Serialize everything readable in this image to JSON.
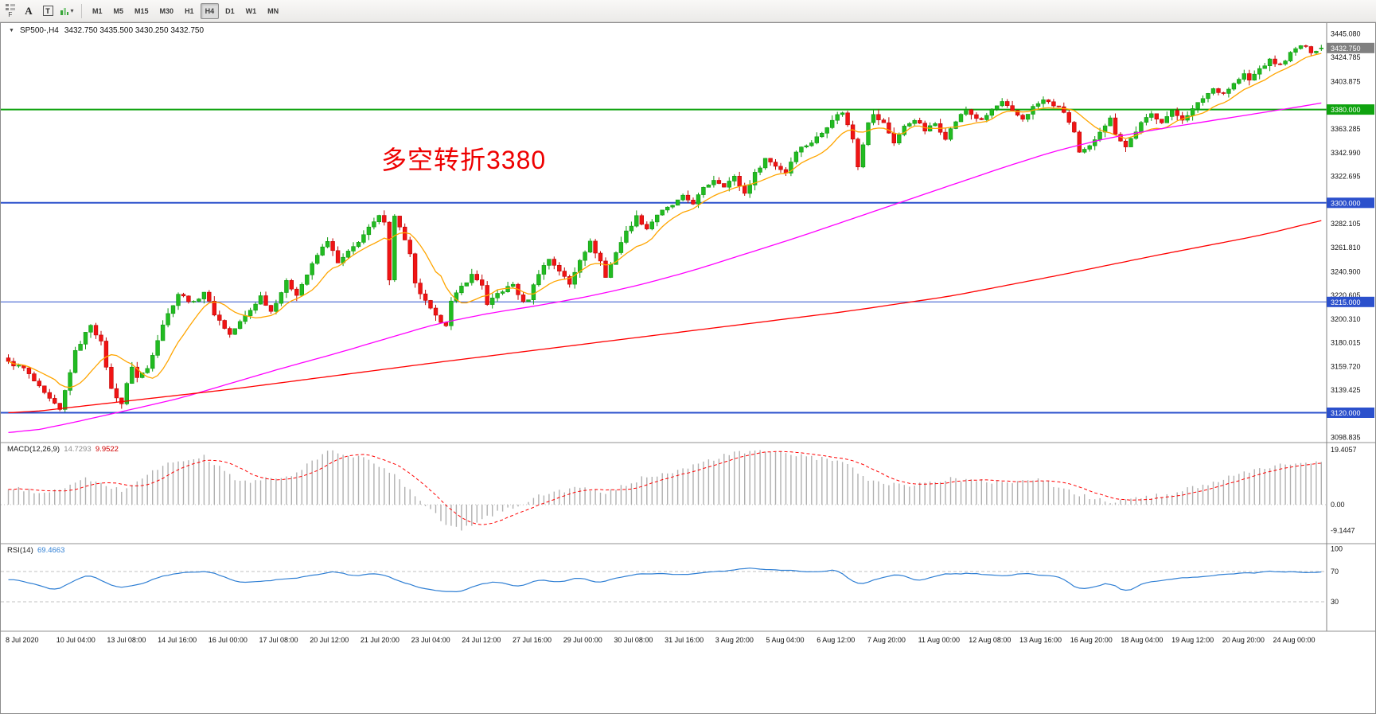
{
  "toolbar": {
    "f_label": "F",
    "icons": {
      "chart_list": "grid",
      "indicators": "bars",
      "dropdown": "▾",
      "symbol_marker": "▼"
    },
    "tools": [
      {
        "name": "text-label",
        "glyph": "A"
      },
      {
        "name": "text-box",
        "glyph": "T"
      }
    ],
    "timeframes": [
      {
        "label": "M1",
        "active": false
      },
      {
        "label": "M5",
        "active": false
      },
      {
        "label": "M15",
        "active": false
      },
      {
        "label": "M30",
        "active": false
      },
      {
        "label": "H1",
        "active": false
      },
      {
        "label": "H4",
        "active": true
      },
      {
        "label": "D1",
        "active": false
      },
      {
        "label": "W1",
        "active": false
      },
      {
        "label": "MN",
        "active": false
      }
    ]
  },
  "chart": {
    "title_marker": "▼",
    "symbol_period": "SP500-,H4",
    "ohlc": "3432.750 3435.500 3430.250 3432.750",
    "annotation": {
      "text": "多空转折3380",
      "color": "#ee0000"
    }
  },
  "chart_data": {
    "type": "candlestick",
    "symbol": "SP500-",
    "timeframe": "H4",
    "title": "SP500-,H4",
    "bars": 256,
    "last_ohlc": {
      "open": 3432.75,
      "high": 3435.5,
      "low": 3430.25,
      "close": 3432.75
    },
    "noise": 3.2,
    "colors": {
      "up": "#22bb22",
      "up_stroke": "#0f9a0f",
      "down": "#f01414",
      "down_stroke": "#c00404"
    },
    "price_axis": {
      "ticks": [
        3445.08,
        3424.785,
        3403.875,
        3363.285,
        3342.99,
        3322.695,
        3282.105,
        3261.81,
        3240.9,
        3220.605,
        3200.31,
        3180.015,
        3159.72,
        3139.425,
        3098.835
      ]
    },
    "current_price": {
      "value": 3432.75,
      "label": "3432.750",
      "bg": "#808080"
    },
    "hlines": [
      {
        "price": 3380.0,
        "label": "3380.000",
        "color": "#0fa30f",
        "width": 2
      },
      {
        "price": 3300.0,
        "label": "3300.000",
        "color": "#2b50cc",
        "width": 2
      },
      {
        "price": 3215.0,
        "label": "3215.000",
        "color": "#2b50cc",
        "width": 1
      },
      {
        "price": 3120.0,
        "label": "3120.000",
        "color": "#2b50cc",
        "width": 2
      }
    ],
    "close_keyframes": [
      [
        0,
        3163
      ],
      [
        3,
        3158
      ],
      [
        7,
        3136
      ],
      [
        10,
        3122
      ],
      [
        13,
        3172
      ],
      [
        16,
        3196
      ],
      [
        18,
        3180
      ],
      [
        20,
        3140
      ],
      [
        22,
        3128
      ],
      [
        24,
        3160
      ],
      [
        25,
        3150
      ],
      [
        27,
        3158
      ],
      [
        30,
        3196
      ],
      [
        33,
        3222
      ],
      [
        36,
        3214
      ],
      [
        38,
        3224
      ],
      [
        40,
        3205
      ],
      [
        43,
        3187
      ],
      [
        47,
        3208
      ],
      [
        49,
        3220
      ],
      [
        51,
        3207
      ],
      [
        54,
        3232
      ],
      [
        56,
        3222
      ],
      [
        60,
        3255
      ],
      [
        62,
        3268
      ],
      [
        64,
        3248
      ],
      [
        67,
        3262
      ],
      [
        70,
        3278
      ],
      [
        72,
        3288
      ],
      [
        73,
        3285
      ],
      [
        74,
        3235
      ],
      [
        75,
        3288
      ],
      [
        76,
        3280
      ],
      [
        78,
        3255
      ],
      [
        79,
        3230
      ],
      [
        81,
        3215
      ],
      [
        83,
        3202
      ],
      [
        85,
        3196
      ],
      [
        86,
        3215
      ],
      [
        88,
        3228
      ],
      [
        90,
        3238
      ],
      [
        92,
        3230
      ],
      [
        93,
        3212
      ],
      [
        95,
        3222
      ],
      [
        98,
        3230
      ],
      [
        100,
        3214
      ],
      [
        101,
        3218
      ],
      [
        103,
        3240
      ],
      [
        105,
        3252
      ],
      [
        107,
        3242
      ],
      [
        109,
        3230
      ],
      [
        111,
        3252
      ],
      [
        113,
        3266
      ],
      [
        115,
        3250
      ],
      [
        116,
        3236
      ],
      [
        118,
        3258
      ],
      [
        120,
        3275
      ],
      [
        122,
        3288
      ],
      [
        124,
        3278
      ],
      [
        126,
        3290
      ],
      [
        129,
        3298
      ],
      [
        131,
        3305
      ],
      [
        133,
        3300
      ],
      [
        135,
        3312
      ],
      [
        137,
        3320
      ],
      [
        139,
        3315
      ],
      [
        141,
        3322
      ],
      [
        143,
        3308
      ],
      [
        145,
        3325
      ],
      [
        147,
        3338
      ],
      [
        149,
        3332
      ],
      [
        151,
        3326
      ],
      [
        153,
        3345
      ],
      [
        156,
        3352
      ],
      [
        158,
        3360
      ],
      [
        160,
        3372
      ],
      [
        162,
        3378
      ],
      [
        164,
        3355
      ],
      [
        165,
        3332
      ],
      [
        167,
        3370
      ],
      [
        168,
        3375
      ],
      [
        170,
        3368
      ],
      [
        172,
        3352
      ],
      [
        174,
        3365
      ],
      [
        176,
        3372
      ],
      [
        178,
        3362
      ],
      [
        180,
        3368
      ],
      [
        182,
        3356
      ],
      [
        184,
        3370
      ],
      [
        186,
        3380
      ],
      [
        187,
        3376
      ],
      [
        189,
        3370
      ],
      [
        191,
        3380
      ],
      [
        193,
        3386
      ],
      [
        195,
        3378
      ],
      [
        197,
        3372
      ],
      [
        199,
        3382
      ],
      [
        201,
        3388
      ],
      [
        203,
        3384
      ],
      [
        205,
        3378
      ],
      [
        207,
        3360
      ],
      [
        208,
        3342
      ],
      [
        210,
        3348
      ],
      [
        212,
        3362
      ],
      [
        214,
        3372
      ],
      [
        215,
        3360
      ],
      [
        217,
        3348
      ],
      [
        218,
        3355
      ],
      [
        220,
        3368
      ],
      [
        222,
        3376
      ],
      [
        224,
        3370
      ],
      [
        226,
        3378
      ],
      [
        228,
        3372
      ],
      [
        230,
        3380
      ],
      [
        232,
        3390
      ],
      [
        234,
        3398
      ],
      [
        236,
        3394
      ],
      [
        238,
        3402
      ],
      [
        240,
        3410
      ],
      [
        241,
        3405
      ],
      [
        243,
        3415
      ],
      [
        245,
        3422
      ],
      [
        247,
        3418
      ],
      [
        249,
        3428
      ],
      [
        251,
        3435
      ],
      [
        253,
        3430
      ],
      [
        255,
        3432.75
      ]
    ],
    "ma": {
      "fast": {
        "color": "#ffa500",
        "period": 10
      },
      "medium": {
        "color": "#ff00ff",
        "keyframes": [
          [
            0,
            3103
          ],
          [
            10,
            3112
          ],
          [
            20,
            3122
          ],
          [
            30,
            3132
          ],
          [
            40,
            3145
          ],
          [
            50,
            3158
          ],
          [
            60,
            3170
          ],
          [
            70,
            3183
          ],
          [
            80,
            3196
          ],
          [
            90,
            3205
          ],
          [
            100,
            3212
          ],
          [
            110,
            3220
          ],
          [
            120,
            3230
          ],
          [
            130,
            3242
          ],
          [
            140,
            3256
          ],
          [
            150,
            3270
          ],
          [
            160,
            3285
          ],
          [
            170,
            3300
          ],
          [
            180,
            3315
          ],
          [
            190,
            3330
          ],
          [
            200,
            3344
          ],
          [
            210,
            3355
          ],
          [
            220,
            3363
          ],
          [
            230,
            3370
          ],
          [
            240,
            3377
          ],
          [
            250,
            3384
          ],
          [
            255,
            3388
          ]
        ]
      },
      "slow": {
        "color": "#ff0000",
        "keyframes": [
          [
            0,
            3120
          ],
          [
            40,
            3140
          ],
          [
            80,
            3163
          ],
          [
            120,
            3185
          ],
          [
            160,
            3207
          ],
          [
            180,
            3220
          ],
          [
            200,
            3237
          ],
          [
            220,
            3255
          ],
          [
            240,
            3272
          ],
          [
            255,
            3288
          ]
        ]
      }
    },
    "macd": {
      "label": "MACD(12,26,9)",
      "value_main": "14.7293",
      "value_signal": "9.9522",
      "bar_color": "#b0b0b0",
      "signal_color": "#ff0000",
      "axis_ticks": [
        {
          "v": 19.4057,
          "label": "19.4057"
        },
        {
          "v": 0,
          "label": "0.00"
        },
        {
          "v": -9.1447,
          "label": "-9.1447"
        }
      ],
      "keyframes": [
        [
          0,
          6
        ],
        [
          8,
          4
        ],
        [
          15,
          9
        ],
        [
          22,
          5
        ],
        [
          30,
          14
        ],
        [
          38,
          17
        ],
        [
          45,
          8
        ],
        [
          55,
          10
        ],
        [
          62,
          19
        ],
        [
          68,
          17
        ],
        [
          74,
          12
        ],
        [
          80,
          2
        ],
        [
          85,
          -7
        ],
        [
          88,
          -9.1
        ],
        [
          93,
          -4
        ],
        [
          98,
          -1
        ],
        [
          103,
          3
        ],
        [
          110,
          6
        ],
        [
          116,
          4
        ],
        [
          124,
          10
        ],
        [
          132,
          13
        ],
        [
          140,
          18
        ],
        [
          148,
          19
        ],
        [
          155,
          17
        ],
        [
          162,
          15
        ],
        [
          168,
          8
        ],
        [
          175,
          7
        ],
        [
          183,
          9
        ],
        [
          192,
          8
        ],
        [
          200,
          9
        ],
        [
          207,
          4
        ],
        [
          213,
          1
        ],
        [
          219,
          2
        ],
        [
          226,
          4
        ],
        [
          234,
          8
        ],
        [
          242,
          12
        ],
        [
          250,
          15
        ],
        [
          255,
          14.7
        ]
      ]
    },
    "rsi": {
      "label": "RSI(14)",
      "value": "69.4663",
      "color": "#2f7fd4",
      "levels": [
        70,
        30
      ],
      "axis_ticks": [
        {
          "v": 100,
          "label": "100"
        },
        {
          "v": 70,
          "label": "70"
        },
        {
          "v": 30,
          "label": "30"
        }
      ],
      "keyframes": [
        [
          0,
          60
        ],
        [
          5,
          52
        ],
        [
          8,
          46
        ],
        [
          12,
          58
        ],
        [
          15,
          66
        ],
        [
          20,
          48
        ],
        [
          24,
          52
        ],
        [
          28,
          62
        ],
        [
          32,
          68
        ],
        [
          38,
          70
        ],
        [
          44,
          55
        ],
        [
          50,
          58
        ],
        [
          56,
          62
        ],
        [
          62,
          70
        ],
        [
          66,
          65
        ],
        [
          70,
          68
        ],
        [
          74,
          60
        ],
        [
          78,
          50
        ],
        [
          82,
          45
        ],
        [
          86,
          42
        ],
        [
          90,
          52
        ],
        [
          94,
          58
        ],
        [
          98,
          50
        ],
        [
          102,
          60
        ],
        [
          106,
          55
        ],
        [
          110,
          62
        ],
        [
          114,
          55
        ],
        [
          118,
          64
        ],
        [
          124,
          68
        ],
        [
          130,
          66
        ],
        [
          136,
          70
        ],
        [
          142,
          74
        ],
        [
          148,
          72
        ],
        [
          154,
          70
        ],
        [
          160,
          72
        ],
        [
          164,
          52
        ],
        [
          168,
          62
        ],
        [
          172,
          65
        ],
        [
          176,
          58
        ],
        [
          180,
          66
        ],
        [
          186,
          68
        ],
        [
          192,
          64
        ],
        [
          198,
          68
        ],
        [
          204,
          60
        ],
        [
          207,
          46
        ],
        [
          210,
          50
        ],
        [
          213,
          55
        ],
        [
          216,
          44
        ],
        [
          220,
          56
        ],
        [
          226,
          60
        ],
        [
          232,
          64
        ],
        [
          238,
          68
        ],
        [
          244,
          70
        ],
        [
          250,
          68
        ],
        [
          255,
          69.47
        ]
      ]
    },
    "time_axis": [
      "8 Jul 2020",
      "10 Jul 04:00",
      "13 Jul 08:00",
      "14 Jul 16:00",
      "16 Jul 00:00",
      "17 Jul 08:00",
      "20 Jul 12:00",
      "21 Jul 20:00",
      "23 Jul 04:00",
      "24 Jul 12:00",
      "27 Jul 16:00",
      "29 Jul 00:00",
      "30 Jul 08:00",
      "31 Jul 16:00",
      "3 Aug 20:00",
      "5 Aug 04:00",
      "6 Aug 12:00",
      "7 Aug 20:00",
      "11 Aug 00:00",
      "12 Aug 08:00",
      "13 Aug 16:00",
      "16 Aug 20:00",
      "18 Aug 04:00",
      "19 Aug 12:00",
      "20 Aug 20:00",
      "24 Aug 00:00"
    ]
  }
}
